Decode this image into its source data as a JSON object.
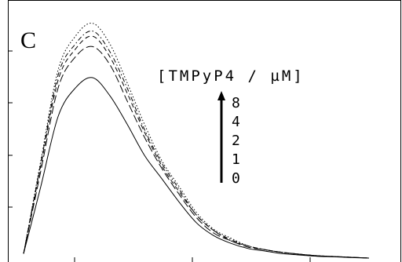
{
  "chart_data": {
    "type": "line",
    "panel_label": "C",
    "legend_title": "[TMPyP4 / µM]",
    "legend_levels": [
      "8",
      "4",
      "2",
      "1",
      "0"
    ],
    "arrow_direction": "up",
    "grid": false,
    "x": [
      0.0,
      0.05,
      0.1,
      0.15,
      0.2,
      0.25,
      0.3,
      0.35,
      0.4,
      0.45,
      0.5,
      0.55,
      0.6,
      0.65,
      0.7,
      0.75,
      0.8,
      0.85,
      0.9,
      0.95,
      1.0
    ],
    "series": [
      {
        "name": "0",
        "style": "solid",
        "values": [
          0.02,
          0.28,
          0.55,
          0.66,
          0.7,
          0.63,
          0.52,
          0.4,
          0.31,
          0.22,
          0.14,
          0.09,
          0.06,
          0.04,
          0.03,
          0.02,
          0.015,
          0.01,
          0.008,
          0.005,
          0.003
        ]
      },
      {
        "name": "1",
        "style": "long-dash",
        "values": [
          0.02,
          0.34,
          0.66,
          0.78,
          0.82,
          0.75,
          0.61,
          0.47,
          0.35,
          0.25,
          0.16,
          0.1,
          0.07,
          0.045,
          0.035,
          0.025,
          0.018,
          0.012,
          0.009,
          0.006,
          0.003
        ]
      },
      {
        "name": "2",
        "style": "dash",
        "values": [
          0.02,
          0.36,
          0.69,
          0.81,
          0.86,
          0.78,
          0.64,
          0.49,
          0.36,
          0.26,
          0.17,
          0.11,
          0.07,
          0.05,
          0.035,
          0.025,
          0.018,
          0.012,
          0.009,
          0.006,
          0.003
        ]
      },
      {
        "name": "4",
        "style": "dash-dot",
        "values": [
          0.02,
          0.37,
          0.71,
          0.83,
          0.88,
          0.8,
          0.66,
          0.5,
          0.37,
          0.27,
          0.17,
          0.11,
          0.075,
          0.05,
          0.035,
          0.025,
          0.018,
          0.012,
          0.009,
          0.006,
          0.003
        ]
      },
      {
        "name": "8",
        "style": "dot",
        "values": [
          0.02,
          0.38,
          0.73,
          0.86,
          0.91,
          0.83,
          0.68,
          0.52,
          0.38,
          0.28,
          0.18,
          0.115,
          0.08,
          0.05,
          0.035,
          0.025,
          0.018,
          0.012,
          0.009,
          0.006,
          0.003
        ]
      }
    ],
    "xlim": [
      0,
      1
    ],
    "ylim": [
      0,
      1
    ]
  }
}
